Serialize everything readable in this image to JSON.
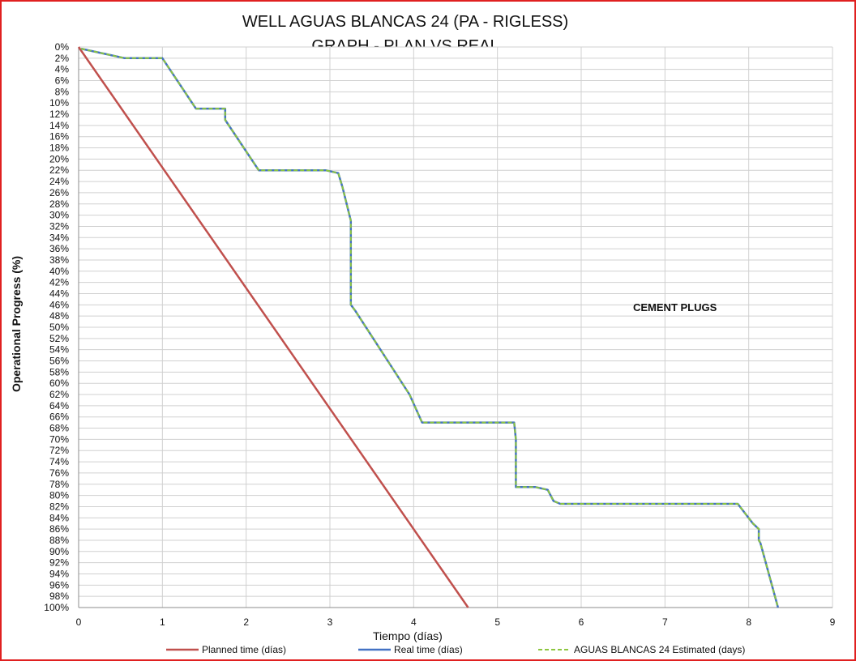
{
  "chart_data": {
    "type": "line",
    "title": "WELL AGUAS BLANCAS 24 (PA - RIGLESS)",
    "subtitle": "GRAPH  - PLAN VS REAL",
    "xlabel": "Tiempo (días)",
    "ylabel": "Operational Progress (%)",
    "xlim": [
      0,
      9
    ],
    "ylim": [
      0,
      100
    ],
    "y_inverted": true,
    "grid": true,
    "legend_position": "bottom",
    "annotation": "CEMENT PLUGS",
    "x_ticks": [
      "0",
      "1",
      "2",
      "3",
      "4",
      "5",
      "6",
      "7",
      "8",
      "9"
    ],
    "y_ticks": [
      "0%",
      "2%",
      "4%",
      "6%",
      "8%",
      "10%",
      "12%",
      "14%",
      "16%",
      "18%",
      "20%",
      "22%",
      "24%",
      "26%",
      "28%",
      "30%",
      "32%",
      "34%",
      "36%",
      "38%",
      "40%",
      "42%",
      "44%",
      "46%",
      "48%",
      "50%",
      "52%",
      "54%",
      "56%",
      "58%",
      "60%",
      "62%",
      "64%",
      "66%",
      "68%",
      "70%",
      "72%",
      "74%",
      "76%",
      "78%",
      "80%",
      "82%",
      "84%",
      "86%",
      "88%",
      "90%",
      "92%",
      "94%",
      "96%",
      "98%",
      "100%"
    ],
    "series": [
      {
        "name": "Planned time (días)",
        "color": "#c0504d",
        "dash": false,
        "x": [
          0,
          4.65
        ],
        "y": [
          0,
          100
        ]
      },
      {
        "name": "Real time (días)",
        "color": "#4472c4",
        "dash": false,
        "x": [
          0.03,
          0.55,
          1.0,
          1.4,
          1.75,
          1.75,
          2.15,
          2.95,
          3.1,
          3.15,
          3.25,
          3.25,
          3.3,
          3.95,
          4.1,
          5.2,
          5.22,
          5.22,
          5.45,
          5.6,
          5.67,
          5.75,
          7.87,
          8.05,
          8.12,
          8.12,
          8.14,
          8.35
        ],
        "y": [
          0.3,
          2,
          2,
          11,
          11,
          13,
          22,
          22,
          22.5,
          25,
          31,
          46,
          47,
          62,
          67,
          67,
          70,
          78.5,
          78.5,
          79,
          81,
          81.5,
          81.5,
          85,
          86,
          88,
          88.5,
          100
        ]
      },
      {
        "name": "AGUAS BLANCAS 24 Estimated (days)",
        "color": "#8dc63f",
        "dash": true,
        "x": [
          0.03,
          0.55,
          1.0,
          1.4,
          1.75,
          1.75,
          2.15,
          2.95,
          3.1,
          3.15,
          3.25,
          3.25,
          3.3,
          3.95,
          4.1,
          5.2,
          5.22,
          5.22,
          5.45,
          5.6,
          5.67,
          5.75,
          7.87,
          8.05,
          8.12,
          8.12,
          8.14,
          8.35
        ],
        "y": [
          0.3,
          2,
          2,
          11,
          11,
          13,
          22,
          22,
          22.5,
          25,
          31,
          46,
          47,
          62,
          67,
          67,
          70,
          78.5,
          78.5,
          79,
          81,
          81.5,
          81.5,
          85,
          86,
          88,
          88.5,
          100
        ]
      }
    ]
  }
}
